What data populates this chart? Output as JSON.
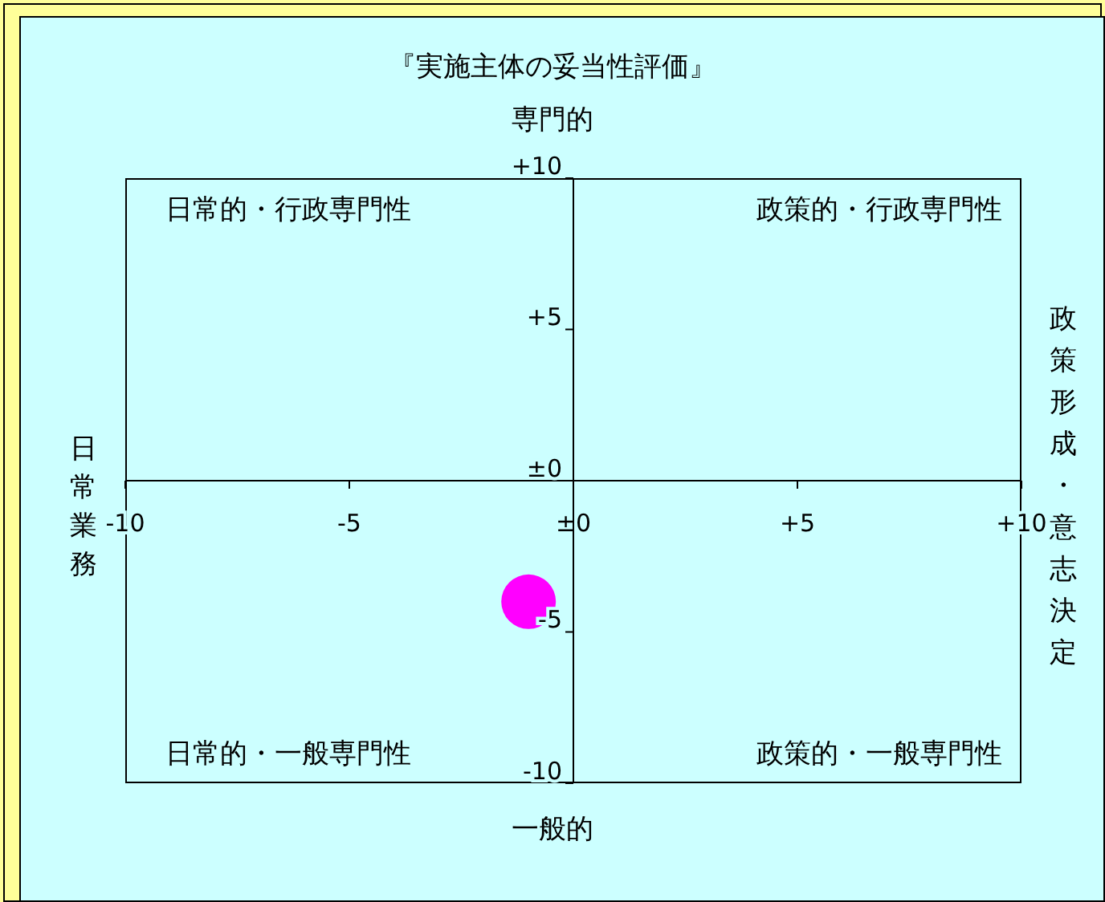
{
  "chart_data": {
    "type": "scatter",
    "title": "『実施主体の妥当性評価』",
    "annotations": [
      "日常的・行政専門性",
      "政策的・行政専門性",
      "日常的・一般専門性",
      "政策的・一般専門性",
      "専門的",
      "一般的",
      "日常業務",
      "政策形成・意志決定"
    ],
    "x": [
      -1
    ],
    "series": [
      {
        "color": "#ff00ff",
        "values": [
          -4
        ]
      }
    ],
    "marker": "circle",
    "xlim": [
      -10,
      10
    ],
    "ylim": [
      -10,
      10
    ],
    "xticks": [
      {
        "value": -10,
        "label": "-10"
      },
      {
        "value": -5,
        "label": "-5"
      },
      {
        "value": 0,
        "label": "±0"
      },
      {
        "value": 5,
        "label": "+5"
      },
      {
        "value": 10,
        "label": "+10"
      }
    ],
    "yticks": [
      {
        "value": -10,
        "label": "-10"
      },
      {
        "value": -5,
        "label": "-5"
      },
      {
        "value": 0,
        "label": "±0"
      },
      {
        "value": 5,
        "label": "+5"
      },
      {
        "value": 10,
        "label": "+10"
      }
    ],
    "grid": false,
    "legend": false
  }
}
